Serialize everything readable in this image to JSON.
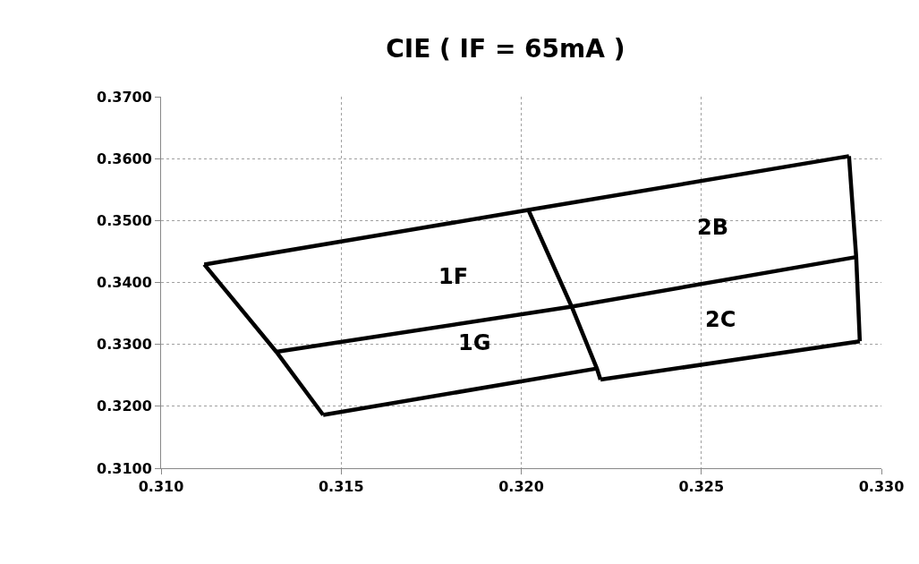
{
  "chart_data": {
    "type": "line",
    "title": "CIE ( IF = 65mA )",
    "series": [
      {
        "color": "#000000",
        "x": [
          0.3112,
          0.3202,
          0.3291
        ],
        "values": [
          0.3429,
          0.3517,
          0.3604
        ]
      },
      {
        "color": "#000000",
        "x": [
          0.3132,
          0.3214,
          0.3293
        ],
        "values": [
          0.3288,
          0.3361,
          0.3441
        ]
      },
      {
        "color": "#000000",
        "x": [
          0.3145,
          0.3221
        ],
        "values": [
          0.3186,
          0.3261
        ]
      },
      {
        "color": "#000000",
        "x": [
          0.3222,
          0.3294
        ],
        "values": [
          0.3243,
          0.3305
        ]
      },
      {
        "color": "#000000",
        "x": [
          0.3112,
          0.3132,
          0.3145
        ],
        "values": [
          0.3429,
          0.3288,
          0.3186
        ]
      },
      {
        "color": "#000000",
        "x": [
          0.3202,
          0.3214,
          0.3221,
          0.3222
        ],
        "values": [
          0.3517,
          0.3361,
          0.3261,
          0.3243
        ]
      },
      {
        "color": "#000000",
        "x": [
          0.3291,
          0.3293,
          0.3294
        ],
        "values": [
          0.3604,
          0.3441,
          0.3305
        ]
      }
    ],
    "annotations": [
      "1F",
      "1G",
      "2B",
      "2C"
    ],
    "xlim": [
      0.31,
      0.33
    ],
    "xticks": [
      {
        "value": 0.31,
        "label": "0.310"
      },
      0.315,
      {
        "value": 0.32,
        "label": "0.320"
      },
      0.325,
      {
        "value": 0.33,
        "label": "0.330"
      }
    ],
    "ylim": [
      0.31,
      0.37
    ],
    "yticks": [
      {
        "value": 0.31,
        "label": "0.3100"
      },
      {
        "value": 0.32,
        "label": "0.3200"
      },
      {
        "value": 0.33,
        "label": "0.3300"
      },
      {
        "value": 0.34,
        "label": "0.3400"
      },
      {
        "value": 0.35,
        "label": "0.3500"
      },
      {
        "value": 0.36,
        "label": "0.3600"
      },
      {
        "value": 0.37,
        "label": "0.3700"
      }
    ],
    "grid": true,
    "marker": "none",
    "line_style": "solid"
  }
}
